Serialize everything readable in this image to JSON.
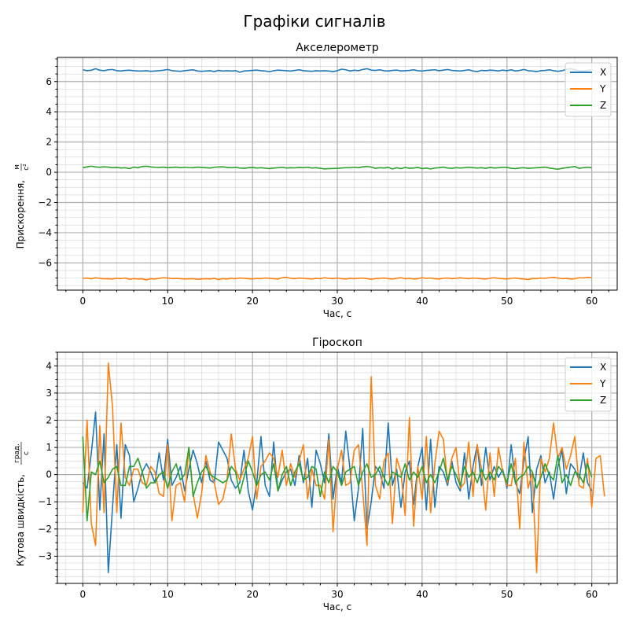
{
  "figure_title": "Графіки сигналів",
  "colors": {
    "X": "#1f77b4",
    "Y": "#ff7f0e",
    "Z": "#2ca02c"
  },
  "chart_data": [
    {
      "type": "line",
      "title": "Акселерометр",
      "xlabel": "Час, с",
      "ylabel": "Прискорення, м/с²",
      "ylabel_main": "Прискорення,",
      "ylabel_frac_num": "м",
      "ylabel_frac_den": "с²",
      "xlim": [
        -3,
        63
      ],
      "ylim": [
        -7.8,
        7.6
      ],
      "xticks": [
        0,
        10,
        20,
        30,
        40,
        50,
        60
      ],
      "yticks": [
        -6,
        -4,
        -2,
        0,
        2,
        4,
        6
      ],
      "xtick_labels": [
        "0",
        "10",
        "20",
        "30",
        "40",
        "50",
        "60"
      ],
      "ytick_labels": [
        "−6",
        "−4",
        "−2",
        "0",
        "2",
        "4",
        "6"
      ],
      "grid": true,
      "legend": "top-right",
      "x_start": 0,
      "x_step": 0.5,
      "series": [
        {
          "name": "X",
          "values": [
            6.78,
            6.72,
            6.75,
            6.85,
            6.75,
            6.72,
            6.78,
            6.8,
            6.72,
            6.7,
            6.74,
            6.75,
            6.72,
            6.7,
            6.7,
            6.72,
            6.68,
            6.7,
            6.72,
            6.75,
            6.8,
            6.72,
            6.7,
            6.68,
            6.72,
            6.75,
            6.78,
            6.7,
            6.68,
            6.7,
            6.72,
            6.66,
            6.74,
            6.7,
            6.72,
            6.7,
            6.72,
            6.62,
            6.7,
            6.72,
            6.74,
            6.76,
            6.72,
            6.7,
            6.65,
            6.72,
            6.76,
            6.74,
            6.72,
            6.7,
            6.74,
            6.78,
            6.72,
            6.7,
            6.68,
            6.72,
            6.7,
            6.72,
            6.7,
            6.66,
            6.72,
            6.82,
            6.78,
            6.7,
            6.75,
            6.72,
            6.8,
            6.85,
            6.76,
            6.74,
            6.78,
            6.72,
            6.7,
            6.74,
            6.76,
            6.7,
            6.72,
            6.74,
            6.78,
            6.72,
            6.7,
            6.74,
            6.76,
            6.78,
            6.72,
            6.76,
            6.8,
            6.74,
            6.72,
            6.7,
            6.74,
            6.78,
            6.7,
            6.66,
            6.74,
            6.72,
            6.76,
            6.74,
            6.7,
            6.76,
            6.72,
            6.78,
            6.7,
            6.74,
            6.8,
            6.72,
            6.7,
            6.66,
            6.72,
            6.74,
            6.78,
            6.72,
            6.68,
            6.72,
            6.8,
            6.85,
            6.78,
            6.72,
            6.7,
            6.74,
            6.78
          ]
        },
        {
          "name": "Y",
          "values": [
            -7.02,
            -7.0,
            -7.05,
            -6.98,
            -7.02,
            -7.05,
            -7.04,
            -7.06,
            -7.02,
            -7.04,
            -7.0,
            -7.08,
            -7.04,
            -7.06,
            -7.05,
            -7.12,
            -7.04,
            -7.06,
            -7.02,
            -6.98,
            -7.0,
            -7.04,
            -7.02,
            -7.04,
            -7.06,
            -7.05,
            -7.04,
            -7.08,
            -7.06,
            -7.04,
            -7.06,
            -7.02,
            -7.1,
            -7.04,
            -7.06,
            -7.02,
            -7.04,
            -7.0,
            -7.02,
            -7.04,
            -7.06,
            -7.02,
            -7.04,
            -7.0,
            -7.02,
            -7.04,
            -7.06,
            -6.98,
            -6.95,
            -7.02,
            -7.04,
            -7.0,
            -7.02,
            -7.04,
            -7.06,
            -7.02,
            -7.04,
            -6.98,
            -7.02,
            -7.04,
            -7.0,
            -7.04,
            -7.06,
            -7.02,
            -7.04,
            -7.02,
            -7.0,
            -7.04,
            -7.08,
            -7.04,
            -7.02,
            -7.0,
            -7.04,
            -7.06,
            -7.02,
            -6.98,
            -7.04,
            -7.02,
            -7.06,
            -7.04,
            -6.98,
            -7.02,
            -7.0,
            -7.04,
            -7.06,
            -7.02,
            -7.0,
            -7.04,
            -7.02,
            -6.98,
            -7.02,
            -7.04,
            -7.0,
            -7.02,
            -7.04,
            -7.06,
            -7.02,
            -6.98,
            -7.02,
            -7.04,
            -7.06,
            -7.02,
            -7.0,
            -7.04,
            -7.06,
            -7.1,
            -7.02,
            -7.04,
            -7.0,
            -7.02,
            -6.98,
            -6.96,
            -7.0,
            -7.04,
            -7.02,
            -7.06,
            -7.04,
            -6.98,
            -7.0,
            -6.96,
            -6.98
          ]
        },
        {
          "name": "Z",
          "values": [
            0.3,
            0.36,
            0.4,
            0.35,
            0.33,
            0.36,
            0.34,
            0.3,
            0.32,
            0.28,
            0.3,
            0.24,
            0.34,
            0.3,
            0.38,
            0.4,
            0.35,
            0.33,
            0.32,
            0.34,
            0.3,
            0.32,
            0.34,
            0.3,
            0.33,
            0.31,
            0.3,
            0.34,
            0.32,
            0.3,
            0.28,
            0.33,
            0.35,
            0.36,
            0.32,
            0.3,
            0.33,
            0.28,
            0.26,
            0.3,
            0.32,
            0.28,
            0.3,
            0.27,
            0.24,
            0.28,
            0.3,
            0.33,
            0.28,
            0.3,
            0.29,
            0.32,
            0.3,
            0.33,
            0.28,
            0.3,
            0.26,
            0.22,
            0.24,
            0.25,
            0.26,
            0.28,
            0.3,
            0.31,
            0.33,
            0.3,
            0.36,
            0.38,
            0.34,
            0.26,
            0.3,
            0.28,
            0.32,
            0.22,
            0.3,
            0.24,
            0.32,
            0.26,
            0.28,
            0.32,
            0.24,
            0.28,
            0.22,
            0.28,
            0.3,
            0.34,
            0.28,
            0.26,
            0.3,
            0.28,
            0.3,
            0.33,
            0.3,
            0.28,
            0.3,
            0.26,
            0.32,
            0.28,
            0.3,
            0.33,
            0.32,
            0.26,
            0.24,
            0.28,
            0.3,
            0.26,
            0.28,
            0.3,
            0.32,
            0.34,
            0.28,
            0.24,
            0.2,
            0.26,
            0.3,
            0.34,
            0.38,
            0.26,
            0.3,
            0.33,
            0.3
          ]
        }
      ]
    },
    {
      "type": "line",
      "title": "Гіроскоп",
      "xlabel": "Час, с",
      "ylabel": "Кутова швидкість, град./с",
      "ylabel_main": "Кутова швидкість,",
      "ylabel_frac_num": "град.",
      "ylabel_frac_den": "с",
      "xlim": [
        -3,
        63
      ],
      "ylim": [
        -4.0,
        4.5
      ],
      "xticks": [
        0,
        10,
        20,
        30,
        40,
        50,
        60
      ],
      "yticks": [
        -3,
        -2,
        -1,
        0,
        1,
        2,
        3,
        4
      ],
      "xtick_labels": [
        "0",
        "10",
        "20",
        "30",
        "40",
        "50",
        "60"
      ],
      "ytick_labels": [
        "−3",
        "−2",
        "−1",
        "0",
        "1",
        "2",
        "3",
        "4"
      ],
      "grid": true,
      "legend": "top-right",
      "x_start": 0,
      "x_step": 0.5,
      "series": [
        {
          "name": "X",
          "values": [
            -0.3,
            -0.5,
            0.8,
            2.3,
            -1.3,
            1.5,
            -3.6,
            -1.2,
            1.1,
            -1.6,
            1.1,
            0.7,
            -1.0,
            -0.5,
            0.1,
            0.4,
            0.1,
            -0.3,
            0.8,
            -0.2,
            1.3,
            -0.4,
            -0.1,
            0.3,
            -0.6,
            0.2,
            0.9,
            0.4,
            -0.3,
            0.5,
            -0.2,
            -0.3,
            1.2,
            0.9,
            0.6,
            -0.2,
            -0.5,
            -0.3,
            0.9,
            -0.6,
            -1.3,
            -0.3,
            1.4,
            -0.4,
            -0.8,
            1.2,
            -0.6,
            -0.2,
            0.1,
            0.2,
            -0.4,
            0.7,
            -0.3,
            0.6,
            -1.2,
            0.9,
            0.4,
            -0.3,
            1.5,
            -0.9,
            0.3,
            -0.3,
            1.6,
            0.2,
            -1.7,
            -0.5,
            1.7,
            -2.0,
            -1.0,
            0.3,
            0.1,
            -0.5,
            1.9,
            -0.4,
            0.2,
            -1.2,
            0.1,
            0.5,
            -1.1,
            0.3,
            1.0,
            -1.3,
            1.3,
            -1.2,
            0.3,
            0.1,
            -0.4,
            0.5,
            -0.3,
            -0.6,
            0.8,
            -0.9,
            0.3,
            1.1,
            -0.4,
            1.0,
            -0.2,
            0.3,
            -0.1,
            0.2,
            -0.5,
            1.1,
            -0.3,
            -0.7,
            0.5,
            1.4,
            -1.4,
            0.2,
            0.7,
            -0.3,
            0.1,
            -0.9,
            0.3,
            0.9,
            -0.7,
            0.4,
            0.2,
            -0.2,
            0.8,
            -0.3,
            -0.6
          ]
        },
        {
          "name": "Y",
          "values": [
            -1.4,
            2.0,
            -1.8,
            -2.6,
            1.8,
            -1.4,
            4.1,
            2.5,
            -1.4,
            1.9,
            -0.1,
            -0.4,
            0.2,
            0.2,
            -0.3,
            -0.4,
            0.3,
            0.1,
            -0.7,
            -0.8,
            1.1,
            -1.7,
            -0.4,
            -0.3,
            -1.0,
            1.0,
            -0.7,
            -1.6,
            -0.7,
            0.7,
            0.1,
            -0.3,
            -1.1,
            -0.9,
            -0.2,
            1.5,
            0.2,
            -0.2,
            0.2,
            0.6,
            1.4,
            -0.9,
            0.3,
            0.5,
            0.8,
            0.6,
            -0.1,
            0.9,
            -0.4,
            0.4,
            -0.1,
            0.5,
            1.1,
            -0.9,
            0.2,
            -0.4,
            -0.4,
            -0.9,
            1.3,
            -2.1,
            0.2,
            0.9,
            -0.4,
            -0.3,
            0.9,
            1.1,
            -0.6,
            -2.6,
            3.6,
            -0.4,
            -0.9,
            0.5,
            0.8,
            -1.8,
            0.6,
            0.1,
            -1.5,
            2.1,
            -1.9,
            0.3,
            -0.9,
            1.4,
            -1.4,
            0.4,
            1.6,
            1.3,
            -0.3,
            0.6,
            1.0,
            -0.5,
            -0.3,
            1.2,
            -0.8,
            1.1,
            0.2,
            -1.3,
            0.8,
            -0.8,
            1.0,
            0.1,
            -0.4,
            -0.4,
            0.6,
            -2.0,
            1.2,
            -0.5,
            0.1,
            -3.6,
            0.6,
            0.1,
            0.6,
            1.9,
            0.6,
            1.0,
            0.2,
            0.7,
            1.4,
            -0.4,
            -0.5,
            0.6,
            -1.2,
            0.6,
            0.7,
            -0.8
          ]
        },
        {
          "name": "Z",
          "values": [
            1.4,
            -1.7,
            0.1,
            0.0,
            0.5,
            -0.3,
            -0.1,
            0.2,
            0.3,
            -0.4,
            -0.4,
            0.3,
            0.3,
            0.6,
            0.1,
            -0.5,
            -0.3,
            -0.3,
            0.0,
            0.1,
            -0.5,
            0.1,
            0.4,
            -0.2,
            0.0,
            1.0,
            -0.8,
            -0.3,
            0.1,
            0.3,
            0.0,
            -0.1,
            -0.2,
            -0.3,
            -0.2,
            0.3,
            0.1,
            -0.7,
            -0.1,
            0.5,
            0.1,
            -0.4,
            0.0,
            0.1,
            -0.2,
            0.4,
            -0.6,
            0.0,
            0.3,
            -0.4,
            0.1,
            0.4,
            -0.2,
            -0.1,
            0.3,
            0.2,
            -0.8,
            0.1,
            -0.3,
            0.3,
            0.1,
            -0.4,
            0.1,
            0.2,
            0.3,
            -0.4,
            0.1,
            0.4,
            -0.1,
            0.0,
            0.3,
            -0.1,
            -0.4,
            0.1,
            0.0,
            -0.1,
            0.4,
            -0.2,
            0.1,
            -0.1,
            0.3,
            -0.3,
            0.0,
            -0.3,
            0.1,
            0.6,
            -0.2,
            0.3,
            0.0,
            -0.4,
            0.3,
            -0.1,
            0.1,
            -0.3,
            0.2,
            -0.2,
            0.1,
            -0.2,
            0.3,
            0.1,
            -0.3,
            0.4,
            -0.3,
            -0.1,
            0.0,
            0.3,
            0.1,
            -0.5,
            -0.1,
            0.4,
            0.0,
            -0.2,
            0.7,
            -0.3,
            0.0,
            -0.4,
            0.1,
            0.0,
            -0.3,
            0.4,
            -0.1
          ]
        }
      ]
    }
  ]
}
